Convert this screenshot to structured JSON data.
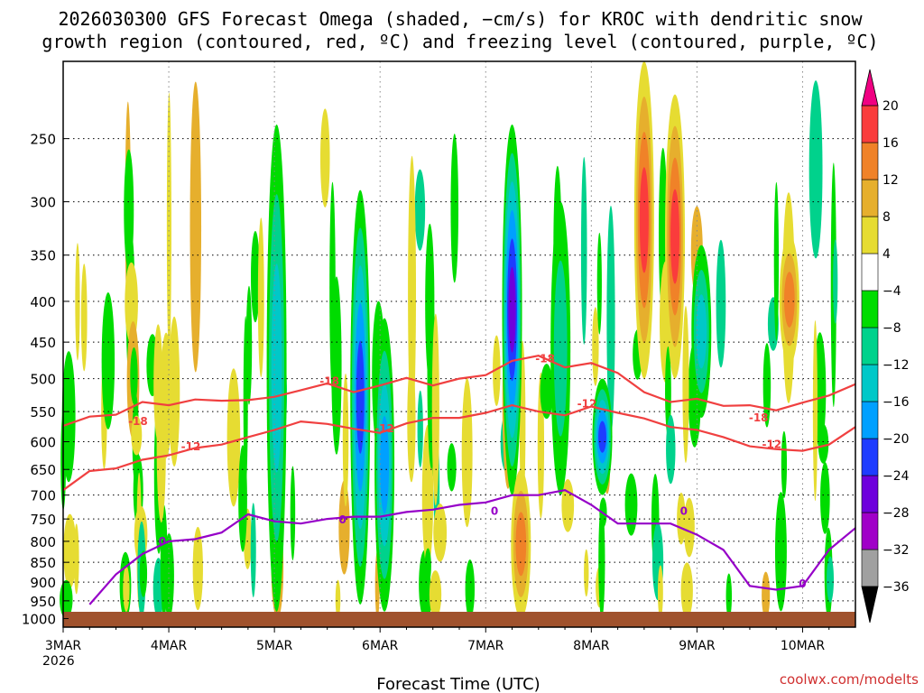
{
  "title_line1": "2026030300 GFS Forecast Omega (shaded, −cm/s) for KROC with dendritic snow",
  "title_line2": "growth region (contoured, red, ºC) and freezing level (contoured, purple, ºC)",
  "watermark": "coolwx.com/modelts",
  "chart_data": {
    "type": "heatmap",
    "title": "2026030300 GFS Forecast Omega (shaded, −cm/s) for KROC with dendritic snow growth region (contoured, red, ºC) and freezing level (contoured, purple, ºC)",
    "xlabel": "Forecast Time (UTC)",
    "ylabel": "",
    "x_range_hours": [
      0,
      180
    ],
    "x_ticks": [
      {
        "label": "3MAR",
        "hour": 0
      },
      {
        "label": "4MAR",
        "hour": 24
      },
      {
        "label": "5MAR",
        "hour": 48
      },
      {
        "label": "6MAR",
        "hour": 72
      },
      {
        "label": "7MAR",
        "hour": 96
      },
      {
        "label": "8MAR",
        "hour": 120
      },
      {
        "label": "9MAR",
        "hour": 144
      },
      {
        "label": "10MAR",
        "hour": 168
      }
    ],
    "x_year_label": "2026",
    "y_ticks_hPa": [
      250,
      300,
      350,
      400,
      450,
      500,
      550,
      600,
      650,
      700,
      750,
      800,
      850,
      900,
      950,
      1000
    ],
    "y_range_hPa": [
      200,
      1025
    ],
    "grid": true,
    "colorbar": {
      "labels": [
        "20",
        "16",
        "12",
        "8",
        "4",
        "−4",
        "−8",
        "−12",
        "−16",
        "−20",
        "−24",
        "−28",
        "−32",
        "−36"
      ],
      "colors": [
        "#e8e8e8",
        "#a0a0a0",
        "#a000c8",
        "#6e00dc",
        "#1e3cff",
        "#00a0ff",
        "#00c8c8",
        "#00d28c",
        "#00dc00",
        "#ffffff",
        "#e6dc32",
        "#e6af2d",
        "#f08228",
        "#fa3c3c",
        "#f00082"
      ]
    },
    "contours": [
      {
        "name": "-18 ºC",
        "color": "#f04040",
        "hour": [
          0,
          6,
          12,
          18,
          24,
          30,
          36,
          42,
          48,
          54,
          60,
          66,
          72,
          78,
          84,
          90,
          96,
          102,
          108,
          114,
          120,
          126,
          132,
          138,
          144,
          150,
          156,
          162,
          168,
          174,
          180
        ],
        "hPa": [
          573,
          558,
          555,
          535,
          540,
          531,
          533,
          532,
          527,
          517,
          507,
          520,
          510,
          499,
          510,
          500,
          495,
          475,
          468,
          484,
          478,
          492,
          520,
          535,
          530,
          541,
          540,
          548,
          536,
          525,
          508
        ]
      },
      {
        "name": "-12 ºC",
        "color": "#f04040",
        "hour": [
          0,
          6,
          12,
          18,
          24,
          30,
          36,
          42,
          48,
          54,
          60,
          66,
          72,
          78,
          84,
          90,
          96,
          102,
          108,
          114,
          120,
          126,
          132,
          138,
          144,
          150,
          156,
          162,
          168,
          174,
          180
        ],
        "hPa": [
          690,
          653,
          648,
          632,
          624,
          611,
          605,
          592,
          580,
          566,
          570,
          578,
          585,
          569,
          560,
          560,
          552,
          540,
          550,
          556,
          542,
          552,
          561,
          575,
          580,
          592,
          608,
          613,
          616,
          605,
          575
        ]
      },
      {
        "name": "0 ºC",
        "color": "#9600c8",
        "hour": [
          6,
          12,
          18,
          24,
          30,
          36,
          42,
          48,
          54,
          60,
          66,
          72,
          78,
          84,
          90,
          96,
          102,
          108,
          114,
          120,
          126,
          132,
          138,
          144,
          150,
          156,
          162,
          168,
          174,
          180
        ],
        "hPa": [
          960,
          880,
          830,
          800,
          795,
          780,
          740,
          755,
          760,
          750,
          745,
          745,
          735,
          730,
          720,
          715,
          700,
          700,
          690,
          720,
          760,
          760,
          760,
          785,
          820,
          910,
          920,
          910,
          820,
          770
        ]
      }
    ],
    "contour_labels": [
      {
        "text": "-18",
        "hour": 17,
        "hPa": 566
      },
      {
        "text": "-18",
        "hour": 60.5,
        "hPa": 504
      },
      {
        "text": "-18",
        "hour": 109.5,
        "hPa": 472
      },
      {
        "text": "-18",
        "hour": 158,
        "hPa": 560
      },
      {
        "text": "-12",
        "hour": 29,
        "hPa": 609
      },
      {
        "text": "-12",
        "hour": 73,
        "hPa": 578
      },
      {
        "text": "-12",
        "hour": 119,
        "hPa": 538
      },
      {
        "text": "-12",
        "hour": 161,
        "hPa": 605
      },
      {
        "text": "0",
        "hour": 22.5,
        "hPa": 800
      },
      {
        "text": "0",
        "hour": 63.5,
        "hPa": 752
      },
      {
        "text": "0",
        "hour": 98,
        "hPa": 733
      },
      {
        "text": "0",
        "hour": 141,
        "hPa": 733
      },
      {
        "text": "0",
        "hour": 168,
        "hPa": 905
      }
    ],
    "omega_features": [
      {
        "hour": 48.5,
        "p_top": 240,
        "p_bot": 980,
        "value": -12
      },
      {
        "hour": 67.5,
        "p_top": 290,
        "p_bot": 960,
        "value": -22
      },
      {
        "hour": 73,
        "p_top": 420,
        "p_bot": 980,
        "value": -16
      },
      {
        "hour": 102,
        "p_top": 240,
        "p_bot": 700,
        "value": -26
      },
      {
        "hour": 113,
        "p_top": 300,
        "p_bot": 700,
        "value": -8
      },
      {
        "hour": 122.5,
        "p_top": 500,
        "p_bot": 700,
        "value": -20
      },
      {
        "hour": 132,
        "p_top": 200,
        "p_bot": 500,
        "value": 16
      },
      {
        "hour": 139,
        "p_top": 220,
        "p_bot": 500,
        "value": 18
      },
      {
        "hour": 145,
        "p_top": 340,
        "p_bot": 560,
        "value": -14
      },
      {
        "hour": 165,
        "p_top": 330,
        "p_bot": 480,
        "value": 12
      },
      {
        "hour": 104,
        "p_top": 650,
        "p_bot": 1000,
        "value": 12
      }
    ]
  }
}
